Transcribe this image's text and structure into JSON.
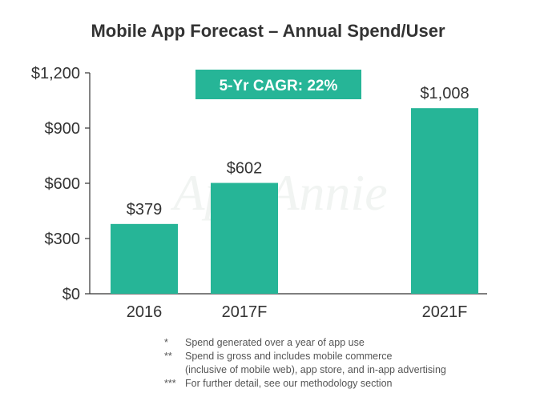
{
  "chart_data": {
    "type": "bar",
    "title": "Mobile App Forecast – Annual Spend/User",
    "categories": [
      "2016",
      "2017F",
      "2021F"
    ],
    "values": [
      379,
      602,
      1008
    ],
    "value_labels": [
      "$379",
      "$602",
      "$1,008"
    ],
    "ylim": [
      0,
      1200
    ],
    "yticks": [
      0,
      300,
      600,
      900,
      1200
    ],
    "ytick_labels": [
      "$0",
      "$300",
      "$600",
      "$900",
      "$1,200"
    ],
    "bar_color": "#26b597",
    "annotation": "5-Yr CAGR: 22%",
    "annotation_color": "#26b597",
    "watermark": "App Annie",
    "grid": false
  },
  "footnotes": [
    {
      "mark": "*",
      "lines": [
        "Spend generated over a year of app use"
      ]
    },
    {
      "mark": "**",
      "lines": [
        "Spend is gross and includes mobile commerce",
        "(inclusive  of mobile web), app store, and in-app advertising"
      ]
    },
    {
      "mark": "***",
      "lines": [
        "For further detail, see our methodology section"
      ]
    }
  ]
}
